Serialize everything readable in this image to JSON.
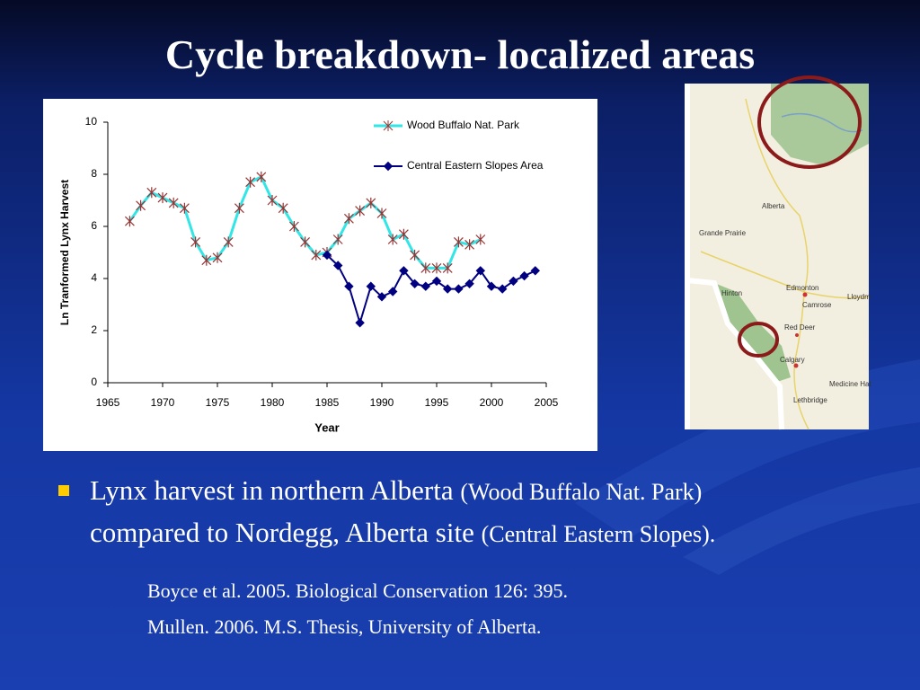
{
  "title": "Cycle breakdown- localized areas",
  "chart_data": {
    "type": "line",
    "xlabel": "Year",
    "ylabel": "Ln  Tranformed  Lynx  Harvest",
    "x": [
      1967,
      1968,
      1969,
      1970,
      1971,
      1972,
      1973,
      1974,
      1975,
      1976,
      1977,
      1978,
      1979,
      1980,
      1981,
      1982,
      1983,
      1984,
      1985,
      1986,
      1987,
      1988,
      1989,
      1990,
      1991,
      1992,
      1993,
      1994,
      1995,
      1996,
      1997,
      1998,
      1999,
      2000,
      2001,
      2002,
      2003,
      2004
    ],
    "series": [
      {
        "name": "Wood Buffalo Nat. Park",
        "color": "#33e6e6",
        "marker": "asterisk",
        "marker_color": "#993333",
        "values": [
          6.2,
          6.8,
          7.3,
          7.1,
          6.9,
          6.7,
          5.4,
          4.7,
          4.8,
          5.4,
          6.7,
          7.7,
          7.9,
          7.0,
          6.7,
          6.0,
          5.4,
          4.9,
          5.0,
          5.5,
          6.3,
          6.6,
          6.9,
          6.5,
          5.5,
          5.7,
          4.9,
          4.4,
          4.4,
          4.4,
          5.4,
          5.3,
          5.5,
          null,
          null,
          null,
          null,
          null
        ]
      },
      {
        "name": "Central Eastern Slopes Area",
        "color": "#000080",
        "marker": "diamond",
        "marker_color": "#000080",
        "values": [
          null,
          null,
          null,
          null,
          null,
          null,
          null,
          null,
          null,
          null,
          null,
          null,
          null,
          null,
          null,
          null,
          null,
          null,
          4.9,
          4.5,
          3.7,
          2.3,
          3.7,
          3.3,
          3.5,
          4.3,
          3.8,
          3.7,
          3.9,
          3.6,
          3.6,
          3.8,
          4.3,
          3.7,
          3.6,
          3.9,
          4.1,
          4.3
        ]
      }
    ],
    "xlim": [
      1965,
      2005
    ],
    "xticks": [
      1965,
      1970,
      1975,
      1980,
      1985,
      1990,
      1995,
      2000,
      2005
    ],
    "ylim": [
      0,
      10
    ],
    "yticks": [
      0,
      2,
      4,
      6,
      8,
      10
    ],
    "legend": "upper right",
    "grid": false
  },
  "map": {
    "labels": [
      "Alberta",
      "Grande Prairie",
      "Edmonton",
      "Hinton",
      "Camrose",
      "Lloydm",
      "Red Deer",
      "Calgary",
      "Medicine Hat",
      "Lethbridge"
    ]
  },
  "bullet": {
    "parts": [
      "Lynx harvest in northern Alberta",
      "(Wood Buffalo Nat. Park)",
      "compared to Nordegg, Alberta site",
      "(Central Eastern Slopes)."
    ]
  },
  "references": [
    "Boyce et al. 2005. Biological Conservation 126: 395.",
    "Mullen. 2006. M.S. Thesis, University of  Alberta."
  ]
}
